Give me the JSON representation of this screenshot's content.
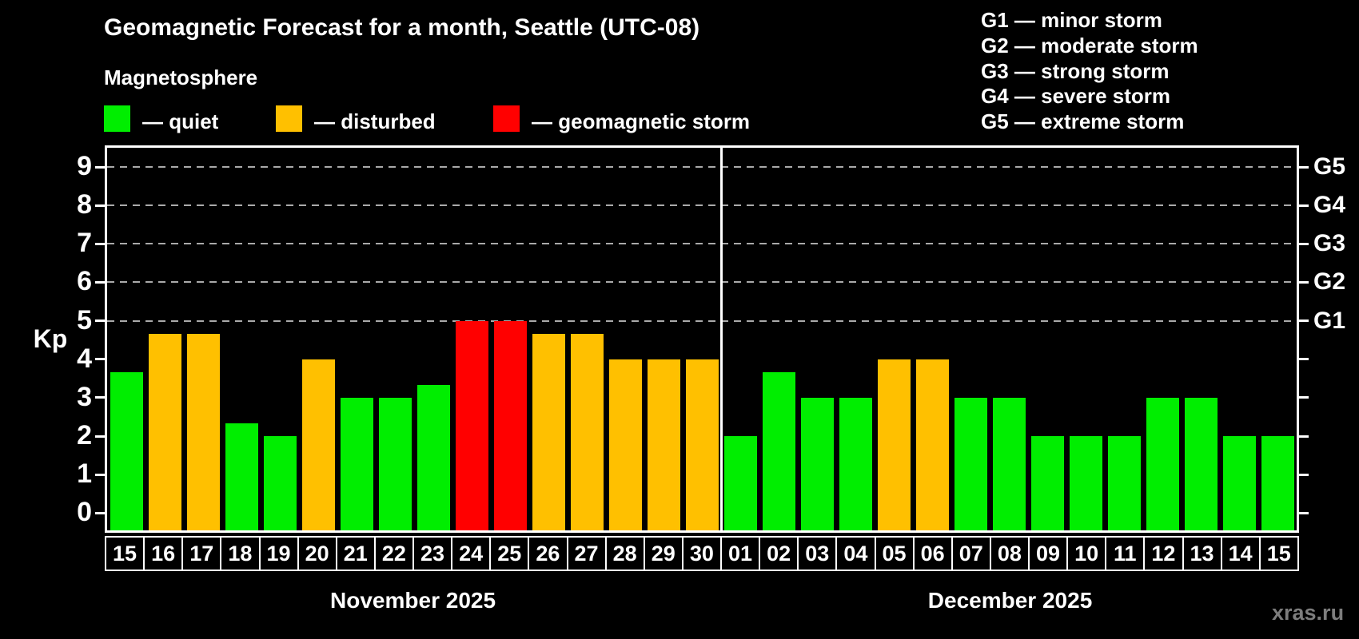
{
  "title": "Geomagnetic Forecast for a month, Seattle (UTC-08)",
  "subtitle": "Magnetosphere",
  "legend": {
    "quiet": "— quiet",
    "disturbed": "— disturbed",
    "storm": "— geomagnetic storm"
  },
  "storm_scale_legend": [
    "G1 — minor storm",
    "G2 — moderate storm",
    "G3 — strong storm",
    "G4 — severe storm",
    "G5 — extreme storm"
  ],
  "colors": {
    "quiet": "#00ee00",
    "disturbed": "#ffc000",
    "storm": "#ff0000",
    "background": "#000000",
    "grid": "#aaaaaa",
    "axis": "#ffffff",
    "watermark": "#7d7d7d"
  },
  "axis": {
    "y_label": "Kp",
    "left_ticks": [
      0,
      1,
      2,
      3,
      4,
      5,
      6,
      7,
      8,
      9
    ],
    "grid_values": [
      5,
      6,
      7,
      8,
      9
    ],
    "right_labels": [
      {
        "value": 9,
        "label": "G5"
      },
      {
        "value": 8,
        "label": "G4"
      },
      {
        "value": 7,
        "label": "G3"
      },
      {
        "value": 6,
        "label": "G2"
      },
      {
        "value": 5,
        "label": "G1"
      }
    ]
  },
  "watermark": "xras.ru",
  "chart_data": {
    "type": "bar",
    "title": "Geomagnetic Forecast for a month, Seattle (UTC-08)",
    "xlabel": "",
    "ylabel": "Kp",
    "ylim": [
      -0.45,
      9.5
    ],
    "grid": "dashed horizontal at Kp 5-9 (G1-G5 levels)",
    "months": [
      {
        "label": "November 2025",
        "days": 16
      },
      {
        "label": "December 2025",
        "days": 15
      }
    ],
    "categories": [
      "15",
      "16",
      "17",
      "18",
      "19",
      "20",
      "21",
      "22",
      "23",
      "24",
      "25",
      "26",
      "27",
      "28",
      "29",
      "30",
      "01",
      "02",
      "03",
      "04",
      "05",
      "06",
      "07",
      "08",
      "09",
      "10",
      "11",
      "12",
      "13",
      "14",
      "15"
    ],
    "values": [
      3.67,
      4.67,
      4.67,
      2.33,
      2,
      4,
      3,
      3,
      3.33,
      5,
      5,
      4.67,
      4.67,
      4,
      4,
      4,
      2,
      3.67,
      3,
      3,
      4,
      4,
      3,
      3,
      2,
      2,
      2,
      3,
      3,
      2,
      2
    ],
    "bars": [
      {
        "month": "November 2025",
        "day": "15",
        "value": 3.67,
        "status": "quiet"
      },
      {
        "month": "November 2025",
        "day": "16",
        "value": 4.67,
        "status": "disturbed"
      },
      {
        "month": "November 2025",
        "day": "17",
        "value": 4.67,
        "status": "disturbed"
      },
      {
        "month": "November 2025",
        "day": "18",
        "value": 2.33,
        "status": "quiet"
      },
      {
        "month": "November 2025",
        "day": "19",
        "value": 2,
        "status": "quiet"
      },
      {
        "month": "November 2025",
        "day": "20",
        "value": 4,
        "status": "disturbed"
      },
      {
        "month": "November 2025",
        "day": "21",
        "value": 3,
        "status": "quiet"
      },
      {
        "month": "November 2025",
        "day": "22",
        "value": 3,
        "status": "quiet"
      },
      {
        "month": "November 2025",
        "day": "23",
        "value": 3.33,
        "status": "quiet"
      },
      {
        "month": "November 2025",
        "day": "24",
        "value": 5,
        "status": "storm"
      },
      {
        "month": "November 2025",
        "day": "25",
        "value": 5,
        "status": "storm"
      },
      {
        "month": "November 2025",
        "day": "26",
        "value": 4.67,
        "status": "disturbed"
      },
      {
        "month": "November 2025",
        "day": "27",
        "value": 4.67,
        "status": "disturbed"
      },
      {
        "month": "November 2025",
        "day": "28",
        "value": 4,
        "status": "disturbed"
      },
      {
        "month": "November 2025",
        "day": "29",
        "value": 4,
        "status": "disturbed"
      },
      {
        "month": "November 2025",
        "day": "30",
        "value": 4,
        "status": "disturbed"
      },
      {
        "month": "December 2025",
        "day": "01",
        "value": 2,
        "status": "quiet"
      },
      {
        "month": "December 2025",
        "day": "02",
        "value": 3.67,
        "status": "quiet"
      },
      {
        "month": "December 2025",
        "day": "03",
        "value": 3,
        "status": "quiet"
      },
      {
        "month": "December 2025",
        "day": "04",
        "value": 3,
        "status": "quiet"
      },
      {
        "month": "December 2025",
        "day": "05",
        "value": 4,
        "status": "disturbed"
      },
      {
        "month": "December 2025",
        "day": "06",
        "value": 4,
        "status": "disturbed"
      },
      {
        "month": "December 2025",
        "day": "07",
        "value": 3,
        "status": "quiet"
      },
      {
        "month": "December 2025",
        "day": "08",
        "value": 3,
        "status": "quiet"
      },
      {
        "month": "December 2025",
        "day": "09",
        "value": 2,
        "status": "quiet"
      },
      {
        "month": "December 2025",
        "day": "10",
        "value": 2,
        "status": "quiet"
      },
      {
        "month": "December 2025",
        "day": "11",
        "value": 2,
        "status": "quiet"
      },
      {
        "month": "December 2025",
        "day": "12",
        "value": 3,
        "status": "quiet"
      },
      {
        "month": "December 2025",
        "day": "13",
        "value": 3,
        "status": "quiet"
      },
      {
        "month": "December 2025",
        "day": "14",
        "value": 2,
        "status": "quiet"
      },
      {
        "month": "December 2025",
        "day": "15",
        "value": 2,
        "status": "quiet"
      }
    ],
    "legend_entries": [
      {
        "label": "quiet",
        "color": "#00ee00"
      },
      {
        "label": "disturbed",
        "color": "#ffc000"
      },
      {
        "label": "geomagnetic storm",
        "color": "#ff0000"
      }
    ],
    "legend_position": "top-left; storm scale legend top-right"
  }
}
